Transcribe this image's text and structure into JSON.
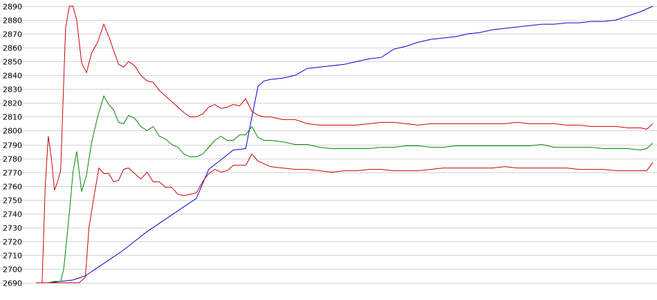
{
  "chart_data": {
    "type": "line",
    "title": "",
    "xlabel": "",
    "ylabel": "",
    "ylim": [
      2690,
      2890
    ],
    "xlim": [
      0,
      100
    ],
    "yticks": [
      2690,
      2700,
      2710,
      2720,
      2730,
      2740,
      2750,
      2760,
      2770,
      2780,
      2790,
      2800,
      2810,
      2820,
      2830,
      2840,
      2850,
      2860,
      2870,
      2880,
      2890
    ],
    "grid": true,
    "legend": "none",
    "series": [
      {
        "color": "#0000cc",
        "x": [
          0,
          2,
          4,
          6,
          8,
          10,
          12,
          14,
          16,
          18,
          20,
          22,
          24,
          26,
          28,
          30,
          32,
          34,
          35,
          36,
          37,
          38,
          40,
          42,
          44,
          46,
          48,
          50,
          52,
          54,
          56,
          58,
          60,
          62,
          64,
          66,
          68,
          70,
          72,
          74,
          76,
          78,
          80,
          82,
          84,
          86,
          88,
          90,
          92,
          94,
          96,
          98,
          100
        ],
        "y": [
          2690,
          2690,
          2691,
          2692,
          2695,
          2701,
          2707,
          2713,
          2720,
          2727,
          2733,
          2739,
          2745,
          2751,
          2772,
          2779,
          2786,
          2787,
          2810,
          2832,
          2836,
          2837,
          2838,
          2840,
          2845,
          2846,
          2847,
          2848,
          2850,
          2852,
          2853,
          2859,
          2861,
          2864,
          2866,
          2867,
          2868,
          2870,
          2871,
          2873,
          2874,
          2875,
          2876,
          2877,
          2877,
          2878,
          2878,
          2879,
          2879,
          2880,
          2883,
          2886,
          2890
        ]
      },
      {
        "color": "#cc0000",
        "x": [
          0,
          1,
          1.5,
          2,
          2.5,
          3,
          3.5,
          4,
          4.8,
          5.4,
          6,
          6.6,
          7.4,
          8.2,
          9,
          10,
          11,
          11.8,
          12.6,
          13.4,
          14.2,
          15,
          16,
          17,
          18,
          19,
          20,
          21,
          22,
          23,
          24,
          25,
          26,
          27,
          28,
          29,
          30,
          31,
          32,
          33,
          34,
          35,
          36,
          37,
          38,
          40,
          42,
          44,
          46,
          48,
          50,
          52,
          54,
          56,
          58,
          60,
          62,
          64,
          66,
          68,
          70,
          72,
          74,
          76,
          78,
          80,
          82,
          84,
          86,
          88,
          90,
          92,
          94,
          96,
          98,
          99,
          100
        ],
        "y": [
          2690,
          2690,
          2760,
          2796,
          2780,
          2757,
          2763,
          2771,
          2874,
          2890,
          2890,
          2880,
          2849,
          2842,
          2856,
          2864,
          2877,
          2868,
          2858,
          2848,
          2846,
          2850,
          2847,
          2840,
          2836,
          2835,
          2829,
          2825,
          2821,
          2817,
          2813,
          2810,
          2810,
          2812,
          2817,
          2819,
          2816,
          2817,
          2819,
          2818,
          2823,
          2814,
          2811,
          2810,
          2810,
          2808,
          2808,
          2805,
          2804,
          2804,
          2804,
          2804,
          2805,
          2806,
          2806,
          2805,
          2804,
          2805,
          2805,
          2805,
          2805,
          2805,
          2805,
          2805,
          2806,
          2805,
          2805,
          2805,
          2804,
          2804,
          2803,
          2803,
          2803,
          2802,
          2802,
          2801,
          2805
        ]
      },
      {
        "color": "#008800",
        "x": [
          0,
          2,
          3,
          3.5,
          4,
          4.5,
          5,
          5.5,
          6,
          6.6,
          7.4,
          8.2,
          9,
          10,
          11,
          11.8,
          12.6,
          13.4,
          14.2,
          15,
          16,
          17,
          18,
          19,
          20,
          21,
          22,
          23,
          24,
          25,
          26,
          27,
          28,
          29,
          30,
          31,
          32,
          33,
          34,
          35,
          36,
          37,
          38,
          40,
          42,
          44,
          46,
          48,
          50,
          52,
          54,
          56,
          58,
          60,
          62,
          64,
          66,
          68,
          70,
          72,
          74,
          76,
          78,
          80,
          82,
          84,
          86,
          88,
          90,
          92,
          94,
          96,
          98,
          99,
          100
        ],
        "y": [
          2690,
          2690,
          2691,
          2691,
          2691,
          2700,
          2722,
          2745,
          2770,
          2785,
          2756,
          2768,
          2791,
          2810,
          2825,
          2819,
          2815,
          2806,
          2805,
          2811,
          2809,
          2803,
          2800,
          2803,
          2796,
          2794,
          2790,
          2788,
          2783,
          2781,
          2781,
          2783,
          2788,
          2793,
          2796,
          2793,
          2793,
          2797,
          2797,
          2803,
          2795,
          2793,
          2793,
          2792,
          2790,
          2790,
          2788,
          2787,
          2787,
          2787,
          2787,
          2788,
          2788,
          2789,
          2789,
          2788,
          2788,
          2789,
          2789,
          2789,
          2789,
          2789,
          2789,
          2789,
          2790,
          2788,
          2788,
          2788,
          2788,
          2787,
          2787,
          2787,
          2786,
          2787,
          2791
        ]
      },
      {
        "color": "#cc0000",
        "x": [
          0,
          4,
          6,
          7,
          8,
          8.6,
          9.4,
          10.2,
          11,
          11.8,
          12.6,
          13.4,
          14.2,
          15,
          16,
          17,
          18,
          19,
          20,
          21,
          22,
          23,
          24,
          25,
          26,
          27,
          28,
          29,
          30,
          31,
          32,
          33,
          34,
          35,
          36,
          37,
          38,
          40,
          42,
          44,
          46,
          48,
          50,
          52,
          54,
          56,
          58,
          60,
          62,
          64,
          66,
          68,
          70,
          72,
          74,
          76,
          78,
          80,
          82,
          84,
          86,
          88,
          90,
          92,
          94,
          96,
          98,
          99,
          100
        ],
        "y": [
          2690,
          2690,
          2690,
          2690,
          2694,
          2730,
          2752,
          2773,
          2769,
          2769,
          2763,
          2764,
          2772,
          2773,
          2769,
          2765,
          2770,
          2763,
          2763,
          2759,
          2759,
          2754,
          2753,
          2754,
          2755,
          2763,
          2769,
          2772,
          2770,
          2771,
          2775,
          2775,
          2775,
          2783,
          2778,
          2776,
          2774,
          2773,
          2772,
          2772,
          2771,
          2770,
          2771,
          2771,
          2772,
          2772,
          2771,
          2771,
          2771,
          2772,
          2773,
          2773,
          2773,
          2773,
          2773,
          2774,
          2773,
          2773,
          2773,
          2773,
          2773,
          2772,
          2772,
          2772,
          2771,
          2771,
          2771,
          2771,
          2777
        ]
      }
    ]
  }
}
